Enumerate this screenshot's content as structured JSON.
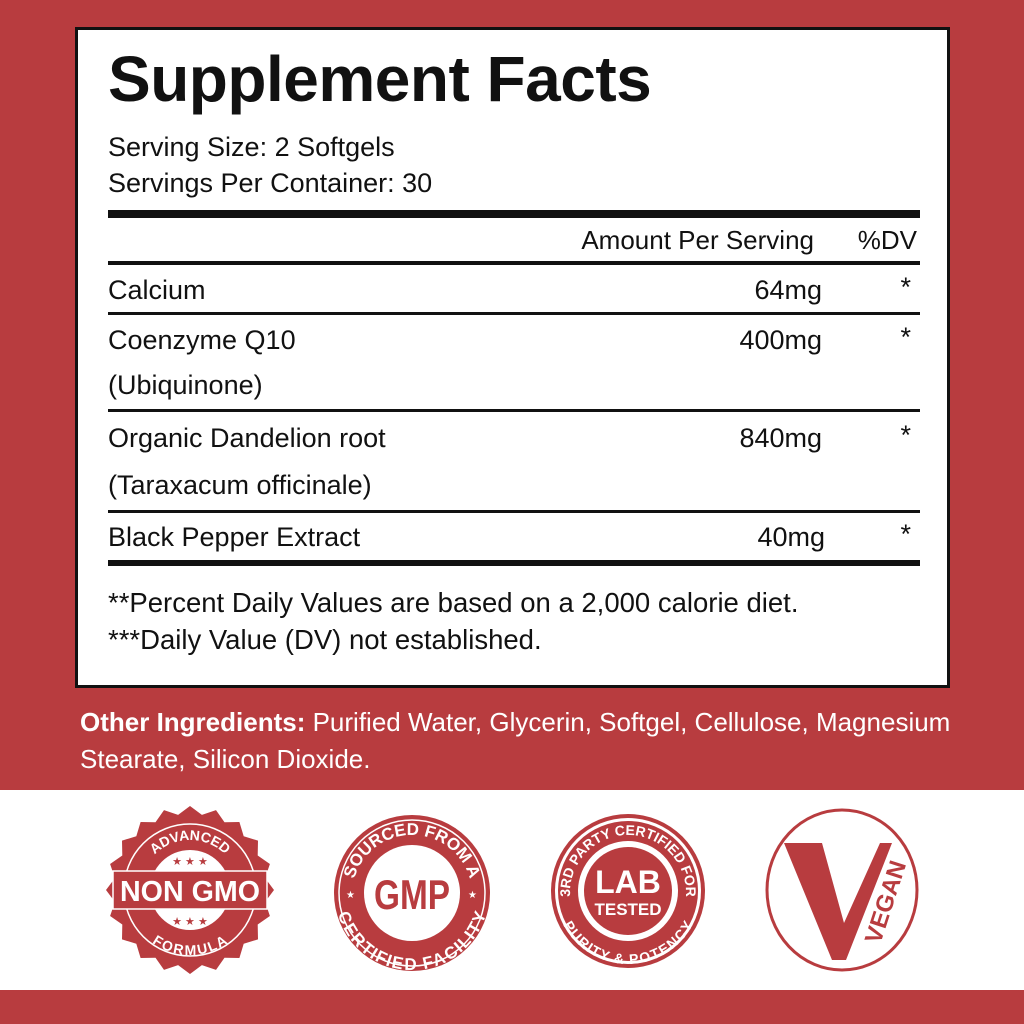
{
  "title": "Supplement Facts",
  "serving_size": "Serving Size: 2 Softgels",
  "servings_per_container": "Servings Per Container: 30",
  "header": {
    "amount": "Amount Per Serving",
    "dv": "%DV"
  },
  "rows": [
    {
      "name": "Calcium",
      "sub": "",
      "amount": "64mg",
      "dv": "*"
    },
    {
      "name": "Coenzyme Q10",
      "sub": "(Ubiquinone)",
      "amount": "400mg",
      "dv": "*"
    },
    {
      "name": "Organic Dandelion root",
      "sub": "(Taraxacum officinale)",
      "amount": "840mg",
      "dv": "*"
    },
    {
      "name": "Black Pepper Extract",
      "sub": "",
      "amount": "40mg",
      "dv": "*"
    }
  ],
  "footnotes": [
    "**Percent Daily Values are based on a 2,000 calorie diet.",
    "***Daily Value (DV) not established."
  ],
  "other": {
    "label": "Other Ingredients:",
    "text": " Purified Water, Glycerin, Softgel, Cellulose, Magnesium Stearate, Silicon Dioxide."
  },
  "badges": {
    "nongmo": {
      "top": "ADVANCED",
      "main": "NON GMO",
      "bottom": "FORMULA"
    },
    "gmp": {
      "top": "SOURCED FROM A",
      "main": "GMP",
      "bottom": "CERTIFIED FACILITY"
    },
    "lab": {
      "top": "3RD PARTY CERTIFIED FOR",
      "main1": "LAB",
      "main2": "TESTED",
      "bottom": "PURITY & POTENCY"
    },
    "vegan": {
      "main": "VEGAN"
    }
  },
  "colors": {
    "brand_red": "#b83c3f",
    "text": "#111111"
  }
}
